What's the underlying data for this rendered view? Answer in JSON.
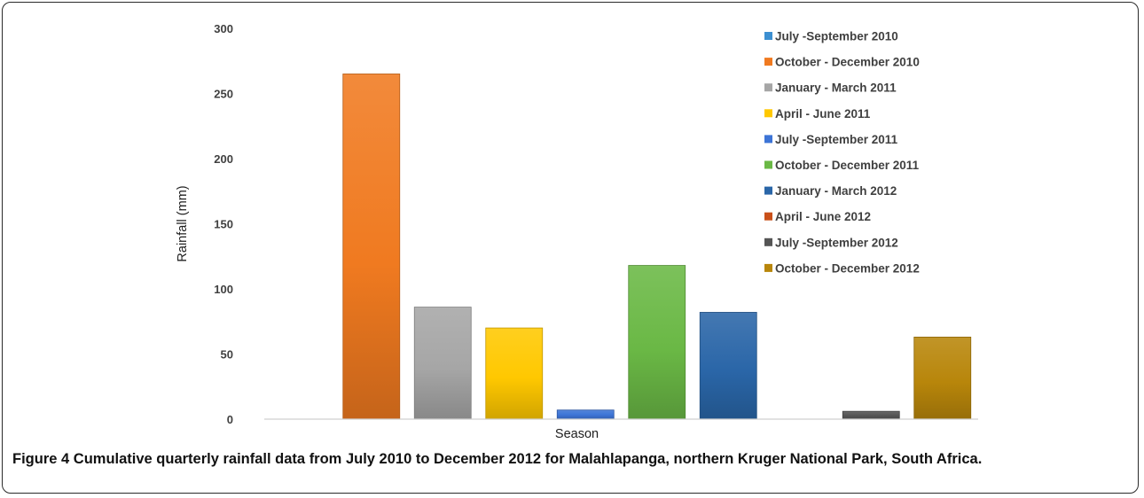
{
  "chart_data": {
    "type": "bar",
    "xlabel": "Season",
    "ylabel": "Rainfall (mm)",
    "ylim": [
      0,
      300
    ],
    "yticks": [
      0,
      50,
      100,
      150,
      200,
      250,
      300
    ],
    "grid": false,
    "legend_position": "right",
    "series": [
      {
        "name": "July -September 2010",
        "value": 0,
        "color": "#3c8fd1"
      },
      {
        "name": "October - December 2010",
        "value": 265,
        "color": "#f07a20"
      },
      {
        "name": "January - March 2011",
        "value": 86,
        "color": "#a6a6a6"
      },
      {
        "name": "April - June 2011",
        "value": 70,
        "color": "#ffc800"
      },
      {
        "name": "July -September 2011",
        "value": 7,
        "color": "#3d74d6"
      },
      {
        "name": "October - December 2011",
        "value": 118,
        "color": "#6ab845"
      },
      {
        "name": "January - March 2012",
        "value": 82,
        "color": "#2a66a8"
      },
      {
        "name": "April - June 2012",
        "value": 0,
        "color": "#c9501a"
      },
      {
        "name": "July -September 2012",
        "value": 6,
        "color": "#555555"
      },
      {
        "name": "October - December 2012",
        "value": 63,
        "color": "#b8860b"
      }
    ]
  },
  "caption": {
    "label": "Figure 4",
    "text": "Cumulative quarterly rainfall data from July 2010 to December 2012 for Malahlapanga, northern Kruger National Park, South Africa."
  }
}
